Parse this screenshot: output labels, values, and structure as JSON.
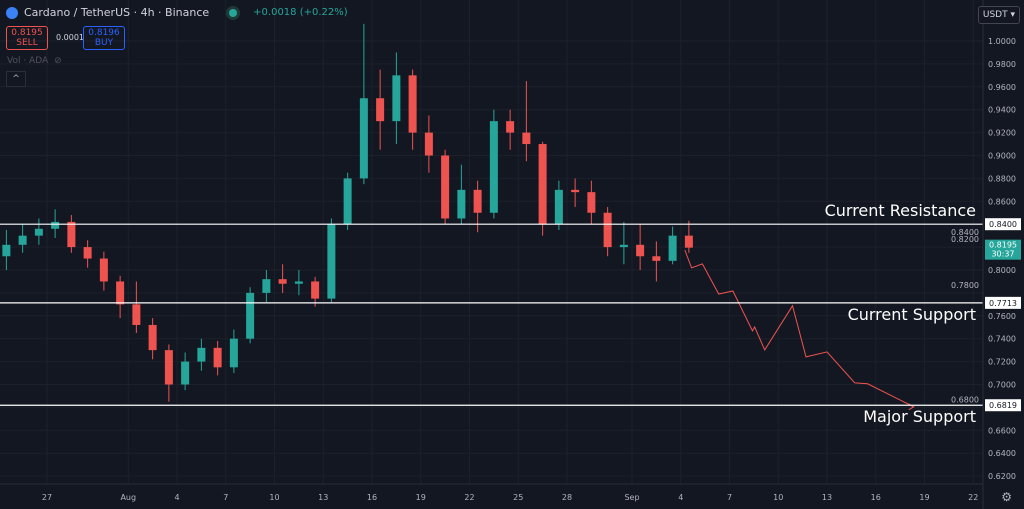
{
  "header": {
    "title": "Cardano / TetherUS · 4h · Binance",
    "change": "+0.0018 (+0.22%)",
    "sell_price": "0.8195",
    "sell_label": "SELL",
    "spread": "0.0001",
    "buy_price": "0.8196",
    "buy_label": "BUY",
    "volume_label": "Vol · ADA",
    "currency": "USDT"
  },
  "colors": {
    "background": "#131722",
    "up": "#26a69a",
    "down": "#ef5350",
    "projection": "#ef5350",
    "level_line": "#ffffff"
  },
  "chart_data": {
    "type": "candlestick",
    "ylim": [
      0.61,
      1.02
    ],
    "y_ticks": [
      "1.0000",
      "0.9800",
      "0.9600",
      "0.9400",
      "0.9200",
      "0.9000",
      "0.8800",
      "0.8600",
      "0.8400",
      "0.8200",
      "0.8000",
      "0.7800",
      "0.7600",
      "0.7400",
      "0.7200",
      "0.7000",
      "0.6800",
      "0.6600",
      "0.6400",
      "0.6200"
    ],
    "x_ticks": [
      {
        "label": "27",
        "date": "2023-07-27"
      },
      {
        "label": "Aug",
        "date": "2023-08-01"
      },
      {
        "label": "4",
        "date": "2023-08-04"
      },
      {
        "label": "7",
        "date": "2023-08-07"
      },
      {
        "label": "10",
        "date": "2023-08-10"
      },
      {
        "label": "13",
        "date": "2023-08-13"
      },
      {
        "label": "16",
        "date": "2023-08-16"
      },
      {
        "label": "19",
        "date": "2023-08-19"
      },
      {
        "label": "22",
        "date": "2023-08-22"
      },
      {
        "label": "25",
        "date": "2023-08-25"
      },
      {
        "label": "28",
        "date": "2023-08-28"
      },
      {
        "label": "Sep",
        "date": "2023-09-01"
      },
      {
        "label": "4",
        "date": "2023-09-04"
      },
      {
        "label": "7",
        "date": "2023-09-07"
      },
      {
        "label": "10",
        "date": "2023-09-10"
      },
      {
        "label": "13",
        "date": "2023-09-13"
      },
      {
        "label": "16",
        "date": "2023-09-16"
      },
      {
        "label": "19",
        "date": "2023-09-19"
      },
      {
        "label": "22",
        "date": "2023-09-22"
      }
    ],
    "candles": [
      {
        "date": "2023-07-24",
        "o": 0.812,
        "h": 0.835,
        "l": 0.8,
        "c": 0.822
      },
      {
        "date": "2023-07-25",
        "o": 0.822,
        "h": 0.84,
        "l": 0.815,
        "c": 0.83
      },
      {
        "date": "2023-07-26",
        "o": 0.83,
        "h": 0.845,
        "l": 0.822,
        "c": 0.836
      },
      {
        "date": "2023-07-27",
        "o": 0.836,
        "h": 0.853,
        "l": 0.828,
        "c": 0.842
      },
      {
        "date": "2023-07-28",
        "o": 0.842,
        "h": 0.848,
        "l": 0.815,
        "c": 0.82
      },
      {
        "date": "2023-07-29",
        "o": 0.82,
        "h": 0.826,
        "l": 0.802,
        "c": 0.81
      },
      {
        "date": "2023-07-30",
        "o": 0.81,
        "h": 0.816,
        "l": 0.782,
        "c": 0.79
      },
      {
        "date": "2023-07-31",
        "o": 0.79,
        "h": 0.795,
        "l": 0.758,
        "c": 0.77
      },
      {
        "date": "2023-08-01",
        "o": 0.77,
        "h": 0.79,
        "l": 0.745,
        "c": 0.752
      },
      {
        "date": "2023-08-02",
        "o": 0.752,
        "h": 0.758,
        "l": 0.722,
        "c": 0.73
      },
      {
        "date": "2023-08-03",
        "o": 0.73,
        "h": 0.735,
        "l": 0.685,
        "c": 0.7
      },
      {
        "date": "2023-08-04",
        "o": 0.7,
        "h": 0.728,
        "l": 0.695,
        "c": 0.72
      },
      {
        "date": "2023-08-05",
        "o": 0.72,
        "h": 0.74,
        "l": 0.712,
        "c": 0.732
      },
      {
        "date": "2023-08-06",
        "o": 0.732,
        "h": 0.738,
        "l": 0.708,
        "c": 0.715
      },
      {
        "date": "2023-08-07",
        "o": 0.715,
        "h": 0.748,
        "l": 0.71,
        "c": 0.74
      },
      {
        "date": "2023-08-08",
        "o": 0.74,
        "h": 0.785,
        "l": 0.736,
        "c": 0.78
      },
      {
        "date": "2023-08-09",
        "o": 0.78,
        "h": 0.8,
        "l": 0.772,
        "c": 0.792
      },
      {
        "date": "2023-08-10",
        "o": 0.792,
        "h": 0.805,
        "l": 0.78,
        "c": 0.788
      },
      {
        "date": "2023-08-11",
        "o": 0.788,
        "h": 0.8,
        "l": 0.778,
        "c": 0.79
      },
      {
        "date": "2023-08-12",
        "o": 0.79,
        "h": 0.794,
        "l": 0.768,
        "c": 0.775
      },
      {
        "date": "2023-08-13",
        "o": 0.775,
        "h": 0.845,
        "l": 0.772,
        "c": 0.84
      },
      {
        "date": "2023-08-14",
        "o": 0.84,
        "h": 0.885,
        "l": 0.835,
        "c": 0.88
      },
      {
        "date": "2023-08-15",
        "o": 0.88,
        "h": 1.015,
        "l": 0.875,
        "c": 0.95
      },
      {
        "date": "2023-08-16",
        "o": 0.95,
        "h": 0.975,
        "l": 0.905,
        "c": 0.93
      },
      {
        "date": "2023-08-17",
        "o": 0.93,
        "h": 0.99,
        "l": 0.91,
        "c": 0.97
      },
      {
        "date": "2023-08-18",
        "o": 0.97,
        "h": 0.975,
        "l": 0.905,
        "c": 0.92
      },
      {
        "date": "2023-08-19",
        "o": 0.92,
        "h": 0.935,
        "l": 0.885,
        "c": 0.9
      },
      {
        "date": "2023-08-20",
        "o": 0.9,
        "h": 0.905,
        "l": 0.84,
        "c": 0.845
      },
      {
        "date": "2023-08-21",
        "o": 0.845,
        "h": 0.892,
        "l": 0.84,
        "c": 0.87
      },
      {
        "date": "2023-08-22",
        "o": 0.87,
        "h": 0.878,
        "l": 0.833,
        "c": 0.85
      },
      {
        "date": "2023-08-23",
        "o": 0.85,
        "h": 0.94,
        "l": 0.845,
        "c": 0.93
      },
      {
        "date": "2023-08-24",
        "o": 0.93,
        "h": 0.94,
        "l": 0.905,
        "c": 0.92
      },
      {
        "date": "2023-08-25",
        "o": 0.92,
        "h": 0.965,
        "l": 0.895,
        "c": 0.91
      },
      {
        "date": "2023-08-26",
        "o": 0.91,
        "h": 0.912,
        "l": 0.83,
        "c": 0.84
      },
      {
        "date": "2023-08-27",
        "o": 0.84,
        "h": 0.878,
        "l": 0.835,
        "c": 0.87
      },
      {
        "date": "2023-08-28",
        "o": 0.87,
        "h": 0.88,
        "l": 0.855,
        "c": 0.868
      },
      {
        "date": "2023-08-29",
        "o": 0.868,
        "h": 0.878,
        "l": 0.84,
        "c": 0.85
      },
      {
        "date": "2023-08-30",
        "o": 0.85,
        "h": 0.855,
        "l": 0.812,
        "c": 0.82
      },
      {
        "date": "2023-08-31",
        "o": 0.82,
        "h": 0.842,
        "l": 0.805,
        "c": 0.822
      },
      {
        "date": "2023-09-01",
        "o": 0.822,
        "h": 0.84,
        "l": 0.8,
        "c": 0.812
      },
      {
        "date": "2023-09-02",
        "o": 0.812,
        "h": 0.825,
        "l": 0.79,
        "c": 0.808
      },
      {
        "date": "2023-09-03",
        "o": 0.808,
        "h": 0.838,
        "l": 0.805,
        "c": 0.83
      },
      {
        "date": "2023-09-04",
        "o": 0.83,
        "h": 0.843,
        "l": 0.815,
        "c": 0.8195
      }
    ],
    "projection": [
      {
        "date": "2023-09-04T06:00",
        "price": 0.8175
      },
      {
        "date": "2023-09-04T16:00",
        "price": 0.8018
      },
      {
        "date": "2023-09-05T08:00",
        "price": 0.8053
      },
      {
        "date": "2023-09-06T08:00",
        "price": 0.779
      },
      {
        "date": "2023-09-07T05:00",
        "price": 0.7817
      },
      {
        "date": "2023-09-08T10:00",
        "price": 0.7468
      },
      {
        "date": "2023-09-08T13:00",
        "price": 0.7503
      },
      {
        "date": "2023-09-09T04:00",
        "price": 0.7302
      },
      {
        "date": "2023-09-10T21:00",
        "price": 0.7687
      },
      {
        "date": "2023-09-11T17:00",
        "price": 0.7241
      },
      {
        "date": "2023-09-13T00:00",
        "price": 0.7285
      },
      {
        "date": "2023-09-14T17:00",
        "price": 0.7014
      },
      {
        "date": "2023-09-15T12:00",
        "price": 0.7006
      },
      {
        "date": "2023-09-18T08:00",
        "price": 0.6805
      }
    ],
    "levels": [
      {
        "label": "Current Resistance",
        "price": 0.84,
        "tag": "0.8400"
      },
      {
        "label": "Current Support",
        "price": 0.7713,
        "tag": "0.7713"
      },
      {
        "label": "Major Support",
        "price": 0.6819,
        "tag": "0.6819"
      }
    ],
    "last_price": {
      "price": 0.8195,
      "tag": "0.8195",
      "countdown": "30:37"
    },
    "grid": true
  }
}
